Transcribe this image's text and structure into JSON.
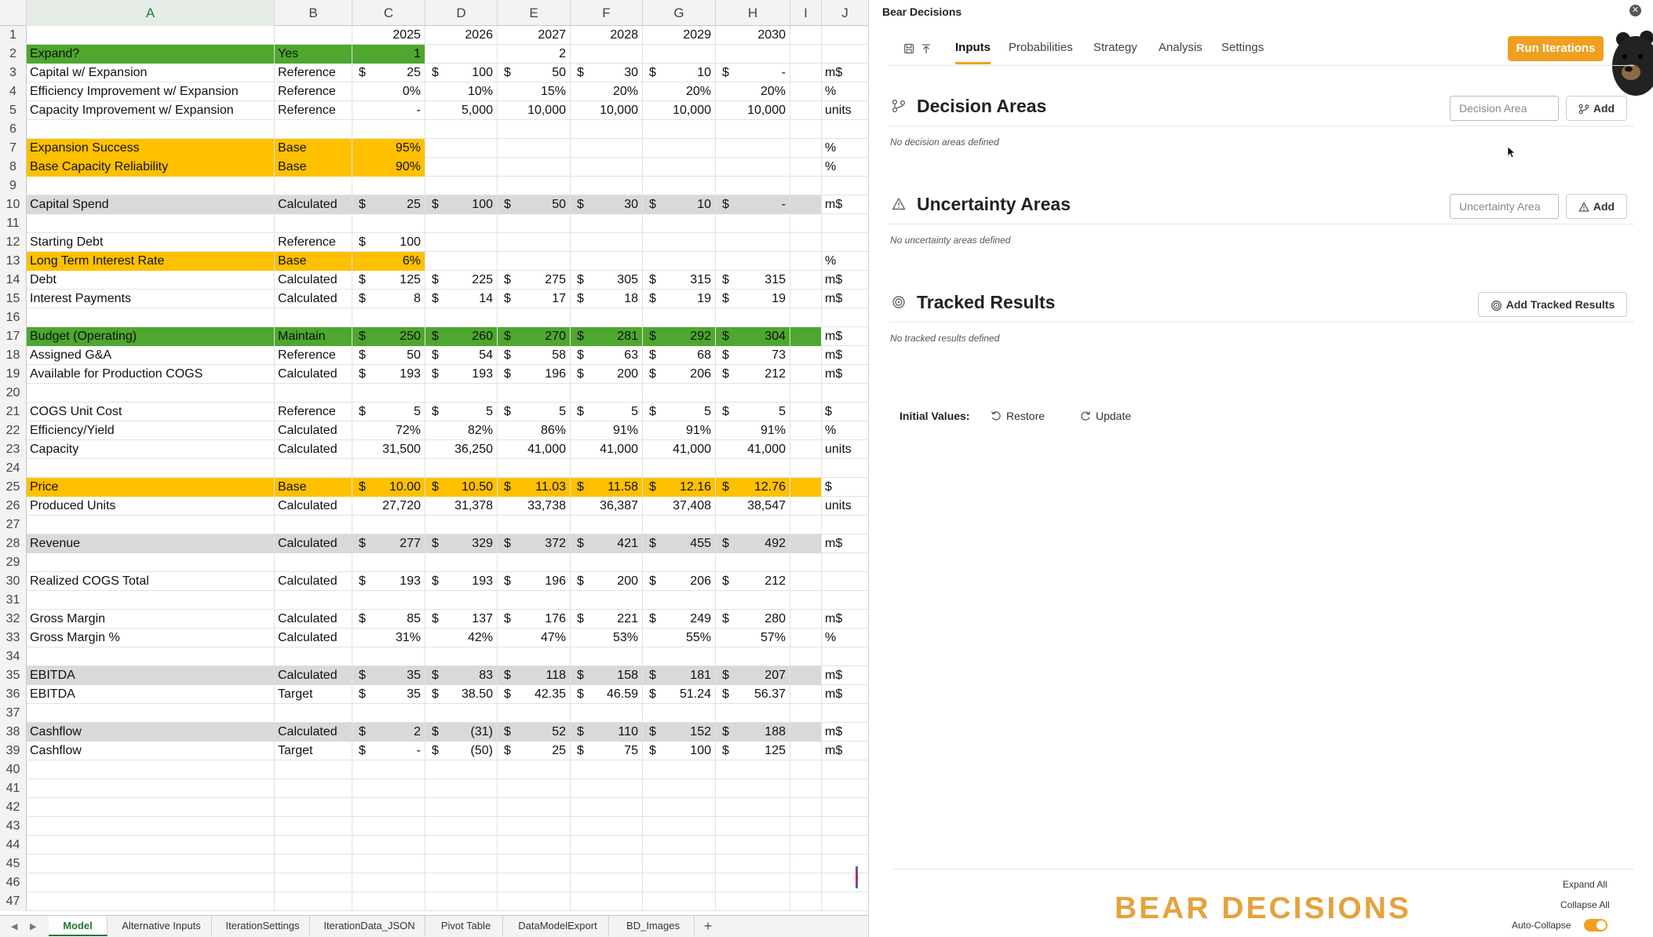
{
  "sheet": {
    "columns": [
      "A",
      "B",
      "C",
      "D",
      "E",
      "F",
      "G",
      "H",
      "I",
      "J"
    ],
    "selected_column": "A",
    "rows": [
      {
        "n": 1,
        "b": "",
        "fill": "",
        "v": [
          "2025",
          "2026",
          "2027",
          "2028",
          "2029",
          "2030"
        ],
        "cur": "none",
        "j": "",
        "a": ""
      },
      {
        "n": 2,
        "a": "Expand?",
        "b": "Yes",
        "fill": "green",
        "cfill": "green",
        "v": [
          "1",
          "",
          "2",
          "",
          "",
          ""
        ],
        "cur": "none",
        "j": ""
      },
      {
        "n": 3,
        "a": "Capital w/ Expansion",
        "b": "Reference",
        "v": [
          "25",
          "100",
          "50",
          "30",
          "10",
          "-"
        ],
        "cur": "all",
        "j": "m$"
      },
      {
        "n": 4,
        "a": "Efficiency Improvement w/ Expansion",
        "b": "Reference",
        "v": [
          "0%",
          "10%",
          "15%",
          "20%",
          "20%",
          "20%"
        ],
        "cur": "none",
        "j": "%"
      },
      {
        "n": 5,
        "a": "Capacity Improvement w/ Expansion",
        "b": "Reference",
        "v": [
          "-",
          "5,000",
          "10,000",
          "10,000",
          "10,000",
          "10,000"
        ],
        "cur": "none",
        "j": "units"
      },
      {
        "n": 6,
        "a": "",
        "b": "",
        "v": [
          "",
          "",
          "",
          "",
          "",
          ""
        ],
        "cur": "none",
        "j": ""
      },
      {
        "n": 7,
        "a": "Expansion Success",
        "b": "Base",
        "fill": "yellow",
        "cfill": "yellow",
        "v": [
          "95%",
          "",
          "",
          "",
          "",
          ""
        ],
        "cur": "none",
        "j": "%"
      },
      {
        "n": 8,
        "a": "Base Capacity Reliability",
        "b": "Base",
        "fill": "yellow",
        "cfill": "yellow",
        "v": [
          "90%",
          "",
          "",
          "",
          "",
          ""
        ],
        "cur": "none",
        "j": "%"
      },
      {
        "n": 9,
        "a": "",
        "b": "",
        "v": [
          "",
          "",
          "",
          "",
          "",
          ""
        ],
        "cur": "none",
        "j": ""
      },
      {
        "n": 10,
        "a": "Capital Spend",
        "b": "Calculated",
        "fill": "grey",
        "v": [
          "25",
          "100",
          "50",
          "30",
          "10",
          "-"
        ],
        "cur": "all",
        "j": "m$"
      },
      {
        "n": 11,
        "a": "",
        "b": "",
        "v": [
          "",
          "",
          "",
          "",
          "",
          ""
        ],
        "cur": "none",
        "j": ""
      },
      {
        "n": 12,
        "a": "Starting Debt",
        "b": "Reference",
        "v": [
          "100",
          "",
          "",
          "",
          "",
          ""
        ],
        "cur": "first",
        "j": ""
      },
      {
        "n": 13,
        "a": "Long Term Interest Rate",
        "b": "Base",
        "fill": "yellow",
        "cfill": "yellow",
        "v": [
          "6%",
          "",
          "",
          "",
          "",
          ""
        ],
        "cur": "none",
        "j": "%"
      },
      {
        "n": 14,
        "a": "Debt",
        "b": "Calculated",
        "v": [
          "125",
          "225",
          "275",
          "305",
          "315",
          "315"
        ],
        "cur": "all",
        "j": "m$"
      },
      {
        "n": 15,
        "a": "Interest Payments",
        "b": "Calculated",
        "v": [
          "8",
          "14",
          "17",
          "18",
          "19",
          "19"
        ],
        "cur": "all",
        "j": "m$"
      },
      {
        "n": 16,
        "a": "",
        "b": "",
        "v": [
          "",
          "",
          "",
          "",
          "",
          ""
        ],
        "cur": "none",
        "j": ""
      },
      {
        "n": 17,
        "a": "Budget (Operating)",
        "b": "Maintain",
        "fill": "green",
        "v": [
          "250",
          "260",
          "270",
          "281",
          "292",
          "304"
        ],
        "cur": "all",
        "j": "m$"
      },
      {
        "n": 18,
        "a": "Assigned G&A",
        "b": "Reference",
        "v": [
          "50",
          "54",
          "58",
          "63",
          "68",
          "73"
        ],
        "cur": "all",
        "j": "m$"
      },
      {
        "n": 19,
        "a": "Available for Production COGS",
        "b": "Calculated",
        "v": [
          "193",
          "193",
          "196",
          "200",
          "206",
          "212"
        ],
        "cur": "all",
        "j": "m$"
      },
      {
        "n": 20,
        "a": "",
        "b": "",
        "v": [
          "",
          "",
          "",
          "",
          "",
          ""
        ],
        "cur": "none",
        "j": ""
      },
      {
        "n": 21,
        "a": "COGS Unit Cost",
        "b": "Reference",
        "v": [
          "5",
          "5",
          "5",
          "5",
          "5",
          "5"
        ],
        "cur": "all",
        "j": "$"
      },
      {
        "n": 22,
        "a": "Efficiency/Yield",
        "b": "Calculated",
        "v": [
          "72%",
          "82%",
          "86%",
          "91%",
          "91%",
          "91%"
        ],
        "cur": "none",
        "j": "%"
      },
      {
        "n": 23,
        "a": "Capacity",
        "b": "Calculated",
        "v": [
          "31,500",
          "36,250",
          "41,000",
          "41,000",
          "41,000",
          "41,000"
        ],
        "cur": "none",
        "j": "units"
      },
      {
        "n": 24,
        "a": "",
        "b": "",
        "v": [
          "",
          "",
          "",
          "",
          "",
          ""
        ],
        "cur": "none",
        "j": ""
      },
      {
        "n": 25,
        "a": "Price",
        "b": "Base",
        "fill": "yellow",
        "v": [
          "10.00",
          "10.50",
          "11.03",
          "11.58",
          "12.16",
          "12.76"
        ],
        "cur": "all",
        "j": "$"
      },
      {
        "n": 26,
        "a": "Produced Units",
        "b": "Calculated",
        "v": [
          "27,720",
          "31,378",
          "33,738",
          "36,387",
          "37,408",
          "38,547"
        ],
        "cur": "none",
        "j": "units"
      },
      {
        "n": 27,
        "a": "",
        "b": "",
        "v": [
          "",
          "",
          "",
          "",
          "",
          ""
        ],
        "cur": "none",
        "j": ""
      },
      {
        "n": 28,
        "a": "Revenue",
        "b": "Calculated",
        "fill": "grey",
        "v": [
          "277",
          "329",
          "372",
          "421",
          "455",
          "492"
        ],
        "cur": "all",
        "j": "m$"
      },
      {
        "n": 29,
        "a": "",
        "b": "",
        "v": [
          "",
          "",
          "",
          "",
          "",
          ""
        ],
        "cur": "none",
        "j": ""
      },
      {
        "n": 30,
        "a": "Realized COGS Total",
        "b": "Calculated",
        "v": [
          "193",
          "193",
          "196",
          "200",
          "206",
          "212"
        ],
        "cur": "all",
        "j": ""
      },
      {
        "n": 31,
        "a": "",
        "b": "",
        "v": [
          "",
          "",
          "",
          "",
          "",
          ""
        ],
        "cur": "none",
        "j": ""
      },
      {
        "n": 32,
        "a": "Gross Margin",
        "b": "Calculated",
        "v": [
          "85",
          "137",
          "176",
          "221",
          "249",
          "280"
        ],
        "cur": "all",
        "j": "m$"
      },
      {
        "n": 33,
        "a": "Gross Margin %",
        "b": "Calculated",
        "v": [
          "31%",
          "42%",
          "47%",
          "53%",
          "55%",
          "57%"
        ],
        "cur": "none",
        "j": "%"
      },
      {
        "n": 34,
        "a": "",
        "b": "",
        "v": [
          "",
          "",
          "",
          "",
          "",
          ""
        ],
        "cur": "none",
        "j": ""
      },
      {
        "n": 35,
        "a": "EBITDA",
        "b": "Calculated",
        "fill": "grey",
        "v": [
          "35",
          "83",
          "118",
          "158",
          "181",
          "207"
        ],
        "cur": "all",
        "j": "m$"
      },
      {
        "n": 36,
        "a": "EBITDA",
        "b": "Target",
        "v": [
          "35",
          "38.50",
          "42.35",
          "46.59",
          "51.24",
          "56.37"
        ],
        "cur": "all",
        "j": "m$"
      },
      {
        "n": 37,
        "a": "",
        "b": "",
        "v": [
          "",
          "",
          "",
          "",
          "",
          ""
        ],
        "cur": "none",
        "j": ""
      },
      {
        "n": 38,
        "a": "Cashflow",
        "b": "Calculated",
        "fill": "grey",
        "v": [
          "2",
          "(31)",
          "52",
          "110",
          "152",
          "188"
        ],
        "cur": "all",
        "j": "m$"
      },
      {
        "n": 39,
        "a": "Cashflow",
        "b": "Target",
        "v": [
          "-",
          "(50)",
          "25",
          "75",
          "100",
          "125"
        ],
        "cur": "all",
        "j": "m$"
      },
      {
        "n": 40,
        "a": "",
        "b": "",
        "v": [
          "",
          "",
          "",
          "",
          "",
          ""
        ],
        "cur": "none",
        "j": ""
      },
      {
        "n": 41,
        "a": "",
        "b": "",
        "v": [
          "",
          "",
          "",
          "",
          "",
          ""
        ],
        "cur": "none",
        "j": ""
      },
      {
        "n": 42,
        "a": "",
        "b": "",
        "v": [
          "",
          "",
          "",
          "",
          "",
          ""
        ],
        "cur": "none",
        "j": ""
      },
      {
        "n": 43,
        "a": "",
        "b": "",
        "v": [
          "",
          "",
          "",
          "",
          "",
          ""
        ],
        "cur": "none",
        "j": ""
      },
      {
        "n": 44,
        "a": "",
        "b": "",
        "v": [
          "",
          "",
          "",
          "",
          "",
          ""
        ],
        "cur": "none",
        "j": ""
      },
      {
        "n": 45,
        "a": "",
        "b": "",
        "v": [
          "",
          "",
          "",
          "",
          "",
          ""
        ],
        "cur": "none",
        "j": ""
      },
      {
        "n": 46,
        "a": "",
        "b": "",
        "v": [
          "",
          "",
          "",
          "",
          "",
          ""
        ],
        "cur": "none",
        "j": ""
      },
      {
        "n": 47,
        "a": "",
        "b": "",
        "v": [
          "",
          "",
          "",
          "",
          "",
          ""
        ],
        "cur": "none",
        "j": ""
      }
    ],
    "currency_symbol": "$",
    "tabs": [
      "Model",
      "Alternative Inputs",
      "IterationSettings",
      "IterationData_JSON",
      "Pivot Table",
      "DataModelExport",
      "BD_Images"
    ],
    "active_tab": "Model",
    "add_tab": "+",
    "colors": {
      "green": "#4ea72e",
      "yellow": "#ffc000",
      "grey": "#d9d9d9"
    }
  },
  "pane": {
    "title": "Bear Decisions",
    "close_icon": "close-icon",
    "nav_tabs": [
      "Inputs",
      "Probabilities",
      "Strategy",
      "Analysis",
      "Settings"
    ],
    "active_nav": "Inputs",
    "run_button": "Run Iterations",
    "decision": {
      "title": "Decision Areas",
      "placeholder": "Decision Area",
      "add": "Add",
      "empty": "No decision areas defined"
    },
    "uncertainty": {
      "title": "Uncertainty Areas",
      "placeholder": "Uncertainty Area",
      "add": "Add",
      "empty": "No uncertainty areas defined"
    },
    "tracked": {
      "title": "Tracked Results",
      "add": "Add Tracked Results",
      "empty": "No tracked results defined"
    },
    "initial_values": {
      "label": "Initial Values:",
      "restore": "Restore",
      "update": "Update"
    },
    "logo": "BEAR DECISIONS",
    "expand_all": "Expand All",
    "collapse_all": "Collapse All",
    "auto_collapse": "Auto-Collapse",
    "auto_collapse_on": true,
    "accent": "#f0a020"
  }
}
